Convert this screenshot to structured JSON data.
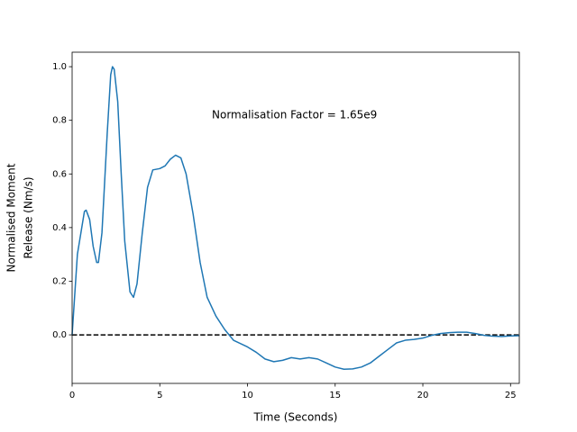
{
  "chart_data": {
    "type": "line",
    "xlabel": "Time (Seconds)",
    "ylabel": [
      "Normalised Moment",
      "Release (Nm/s)"
    ],
    "annotation": "Normalisation Factor = 1.65e9",
    "x": [
      0,
      0.3,
      0.7,
      0.8,
      1.0,
      1.2,
      1.4,
      1.5,
      1.7,
      2.0,
      2.2,
      2.3,
      2.4,
      2.6,
      2.8,
      3.0,
      3.3,
      3.5,
      3.7,
      4.0,
      4.3,
      4.6,
      5.0,
      5.3,
      5.6,
      5.9,
      6.2,
      6.5,
      6.9,
      7.3,
      7.7,
      8.2,
      8.7,
      9.2,
      10,
      10.5,
      11,
      11.5,
      12,
      12.5,
      13,
      13.5,
      14,
      14.5,
      15,
      15.5,
      16,
      16.5,
      17,
      17.5,
      18,
      18.5,
      19,
      19.5,
      20,
      20.5,
      21,
      21.5,
      22,
      22.5,
      23,
      23.5,
      24,
      24.5,
      25,
      25.5
    ],
    "series": [
      {
        "name": "moment release",
        "color": "#1f77b4",
        "values": [
          0,
          0.3,
          0.46,
          0.465,
          0.43,
          0.33,
          0.27,
          0.27,
          0.38,
          0.75,
          0.97,
          1.0,
          0.99,
          0.87,
          0.6,
          0.35,
          0.16,
          0.14,
          0.19,
          0.38,
          0.55,
          0.615,
          0.62,
          0.63,
          0.655,
          0.67,
          0.66,
          0.6,
          0.45,
          0.27,
          0.14,
          0.07,
          0.02,
          -0.02,
          -0.045,
          -0.065,
          -0.09,
          -0.1,
          -0.095,
          -0.085,
          -0.09,
          -0.085,
          -0.09,
          -0.105,
          -0.12,
          -0.128,
          -0.127,
          -0.12,
          -0.105,
          -0.08,
          -0.055,
          -0.03,
          -0.02,
          -0.017,
          -0.012,
          -0.002,
          0.005,
          0.008,
          0.01,
          0.01,
          0.005,
          -0.002,
          -0.005,
          -0.006,
          -0.004,
          -0.003
        ]
      }
    ],
    "hline": {
      "value": 0,
      "color": "#000000",
      "style": "dashed"
    },
    "xlim": [
      0,
      25.5
    ],
    "ylim": [
      -0.181,
      1.054
    ],
    "xticks": [
      0,
      5,
      10,
      15,
      20,
      25
    ],
    "yticks": [
      {
        "value": 0,
        "label": "0.0"
      },
      {
        "value": 0.2,
        "label": "0.2"
      },
      {
        "value": 0.4,
        "label": "0.4"
      },
      {
        "value": 0.6,
        "label": "0.6"
      },
      {
        "value": 0.8,
        "label": "0.8"
      },
      {
        "value": 1,
        "label": "1.0"
      }
    ],
    "grid": false
  }
}
